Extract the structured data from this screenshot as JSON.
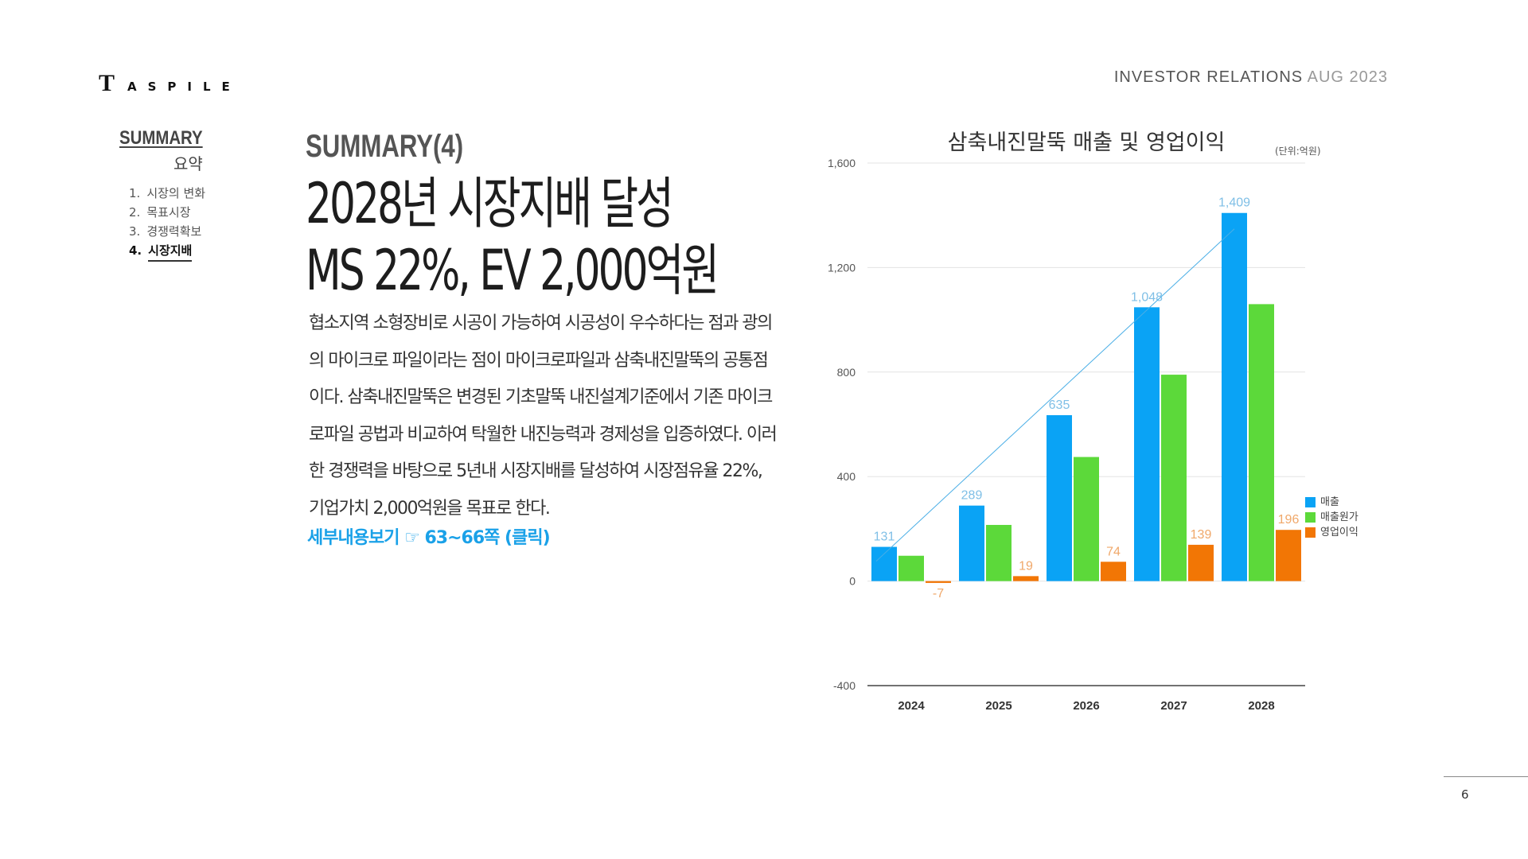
{
  "brand": {
    "logo_initial": "T",
    "logo_rest": "ASPILE"
  },
  "header": {
    "label": "INVESTOR RELATIONS",
    "date": "AUG 2023"
  },
  "sidebar": {
    "title": "SUMMARY",
    "subtitle": "요약",
    "items": [
      {
        "num": "1.",
        "label": "시장의 변화"
      },
      {
        "num": "2.",
        "label": "목표시장"
      },
      {
        "num": "3.",
        "label": "경쟁력확보"
      },
      {
        "num": "4.",
        "label": "시장지배"
      }
    ]
  },
  "main": {
    "section_title": "SUMMARY(4)",
    "headline_line1": "2028년 시장지배 달성",
    "headline_line2": "MS 22%, EV 2,000억원",
    "body": "협소지역 소형장비로 시공이 가능하여 시공성이 우수하다는 점과 광의의 마이크로 파일이라는 점이 마이크로파일과 삼축내진말뚝의 공통점이다. 삼축내진말뚝은 변경된 기초말뚝 내진설계기준에서 기존 마이크로파일 공법과 비교하여 탁월한 내진능력과 경제성을 입증하였다. 이러한 경쟁력을 바탕으로 5년내 시장지배를 달성하여 시장점유율 22%, 기업가치 2,000억원을 목표로 한다.",
    "detail_link": "세부내용보기 ☞ 63~66쪽 (클릭)"
  },
  "chart_data": {
    "type": "bar",
    "title": "삼축내진말뚝 매출 및 영업이익",
    "unit_note": "(단위:억원)",
    "categories": [
      "2024",
      "2025",
      "2026",
      "2027",
      "2028"
    ],
    "series": [
      {
        "name": "매출",
        "color": "#0aa3f5",
        "values": [
          131,
          289,
          635,
          1048,
          1409
        ],
        "labels": [
          "131",
          "289",
          "635",
          "1,048",
          "1,409"
        ],
        "label_color": "#7fbfe6"
      },
      {
        "name": "매출원가",
        "color": "#5cd93a",
        "values": [
          97,
          215,
          475,
          790,
          1060
        ],
        "labels": [],
        "label_color": "#5cd93a"
      },
      {
        "name": "영업이익",
        "color": "#f27605",
        "values": [
          -7,
          19,
          74,
          139,
          196
        ],
        "labels": [
          "-7",
          "19",
          "74",
          "139",
          "196"
        ],
        "label_color": "#f0a86a"
      }
    ],
    "trend_line": {
      "series": "매출",
      "color": "#4aaee6"
    },
    "yticks": [
      "1,600",
      "1,200",
      "800",
      "400",
      "0",
      "-400"
    ],
    "ylim": [
      -400,
      1600
    ],
    "grid": true,
    "legend_position": "right"
  },
  "footer": {
    "page_number": "6"
  }
}
